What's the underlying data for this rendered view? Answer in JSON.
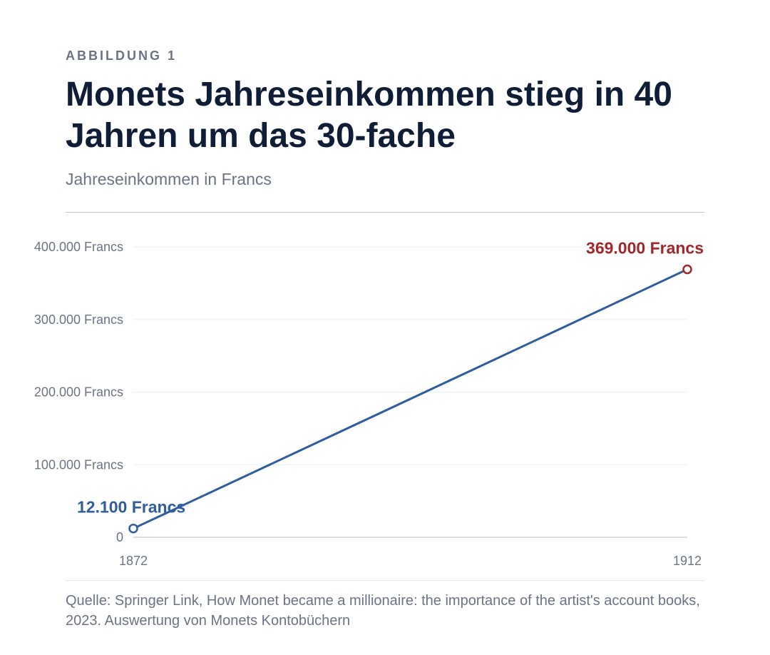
{
  "figure": {
    "eyebrow": "ABBILDUNG 1",
    "title": "Monets Jahreseinkommen stieg in 40 Jahren um das 30-fache",
    "subtitle": "Jahreseinkommen in Francs",
    "source": "Quelle: Springer Link, How Monet became a millionaire: the importance of the artist's account books, 2023. Auswertung von Monets Kontobüchern"
  },
  "colors": {
    "line": "#2f5d9e",
    "start_label": "#2f5d9e",
    "end_label": "#a3262a",
    "axis_text": "#6b7385",
    "grid": "#eceef1"
  },
  "chart_data": {
    "type": "line",
    "x": [
      1872,
      1912
    ],
    "y": [
      12100,
      369000
    ],
    "ylim": [
      0,
      400000
    ],
    "yticks": [
      0,
      100000,
      200000,
      300000,
      400000
    ],
    "ytick_labels": [
      "0",
      "100.000 Francs",
      "200.000 Francs",
      "300.000 Francs",
      "400.000 Francs"
    ],
    "xtick_labels": [
      "1872",
      "1912"
    ],
    "annotations": [
      "12.100 Francs",
      "369.000 Francs"
    ],
    "grid": true
  }
}
